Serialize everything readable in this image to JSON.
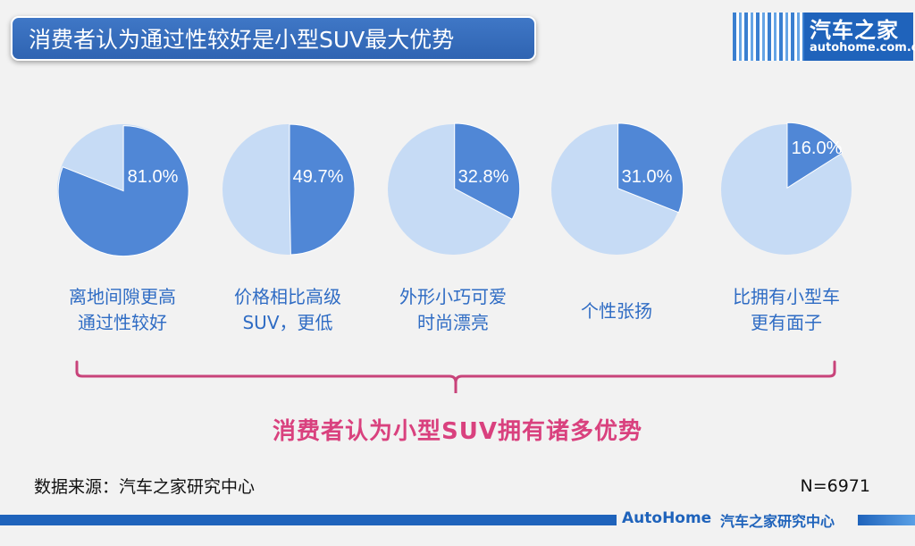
{
  "header": {
    "title": "消费者认为通过性较好是小型SUV最大优势",
    "logo_cn": "汽车之家",
    "logo_en": "autohome.com.cn"
  },
  "chart_data": {
    "type": "pie",
    "unit": "%",
    "items": [
      {
        "label": "离地间隙更高\n通过性较好",
        "value": 81.0,
        "value_label": "81.0%"
      },
      {
        "label": "价格相比高级\nSUV，更低",
        "value": 49.7,
        "value_label": "49.7%"
      },
      {
        "label": "外形小巧可爱\n时尚漂亮",
        "value": 32.8,
        "value_label": "32.8%"
      },
      {
        "label": "个性张扬",
        "value": 31.0,
        "value_label": "31.0%"
      },
      {
        "label": "比拥有小型车\n更有面子",
        "value": 16.0,
        "value_label": "16.0%"
      }
    ],
    "colors": {
      "slice": "#5087d6",
      "rest": "#c6dbf5",
      "bracket": "#c8437a"
    }
  },
  "conclusion": "消费者认为小型SUV拥有诸多优势",
  "source": "数据来源：汽车之家研究中心",
  "sample": "N=6971",
  "footer": {
    "brand_en": "AutoHome",
    "brand_cn": "汽车之家研究中心"
  }
}
